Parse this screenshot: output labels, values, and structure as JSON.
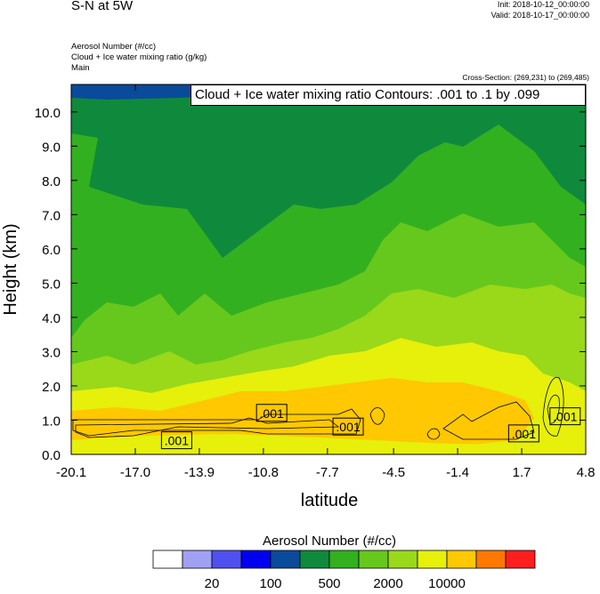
{
  "header": {
    "title": "S-N at 5W",
    "init": "Init: 2018-10-12_00:00:00",
    "valid": "Valid: 2018-10-17_00:00:00",
    "field1": "Aerosol Number   (#/cc)",
    "field2": "Cloud + Ice water mixing ratio   (g/kg)",
    "field3": "Main",
    "cross_section": "Cross-Section: (269,231) to (269,485)",
    "contour_info": "Cloud + Ice water mixing ratio Contours: .001 to .1 by .099"
  },
  "colorbar": {
    "title": "Aerosol Number  (#/cc)",
    "colors": [
      "#ffffff",
      "#a0a0f5",
      "#5050f0",
      "#0000ee",
      "#0a4a9a",
      "#0f8a3c",
      "#33b020",
      "#66c81c",
      "#9ad81a",
      "#e6f00a",
      "#ffc800",
      "#ff7800",
      "#ff1e1e"
    ],
    "labels": [
      "20",
      "100",
      "500",
      "2000",
      "10000"
    ]
  },
  "chart_data": {
    "type": "heatmap",
    "xlabel": "latitude",
    "ylabel": "Height (km)",
    "xlim": [
      -20.1,
      4.8
    ],
    "ylim": [
      0.0,
      10.8
    ],
    "xticks": [
      "-20.1",
      "-17.0",
      "-13.9",
      "-10.8",
      "-7.7",
      "-4.5",
      "-1.4",
      "1.7",
      "4.8"
    ],
    "yticks": [
      "0.0",
      "1.0",
      "2.0",
      "3.0",
      "4.0",
      "5.0",
      "6.0",
      "7.0",
      "8.0",
      "9.0",
      "10.0"
    ],
    "contour_labels": [
      {
        "text": ".001",
        "x": -10.4,
        "y": 1.2
      },
      {
        "text": ".001",
        "x": -6.7,
        "y": 0.8
      },
      {
        "text": ".001",
        "x": -15.0,
        "y": 0.4
      },
      {
        "text": ".001",
        "x": 1.8,
        "y": 0.6
      },
      {
        "text": ".001",
        "x": 3.8,
        "y": 1.1
      }
    ]
  }
}
